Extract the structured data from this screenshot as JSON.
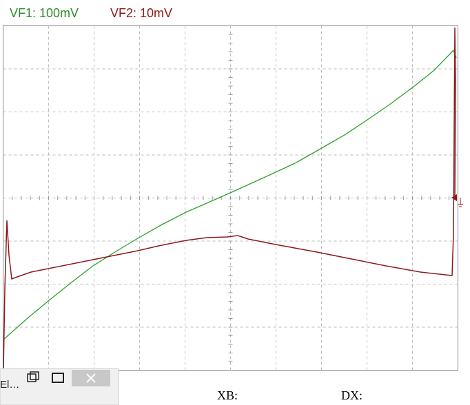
{
  "header": {
    "vf1": "VF1: 100mV",
    "vf2": "VF2: 10mV"
  },
  "footer": {
    "xb": "XB:",
    "dx": "DX:"
  },
  "window": {
    "title": "El…"
  }
}
